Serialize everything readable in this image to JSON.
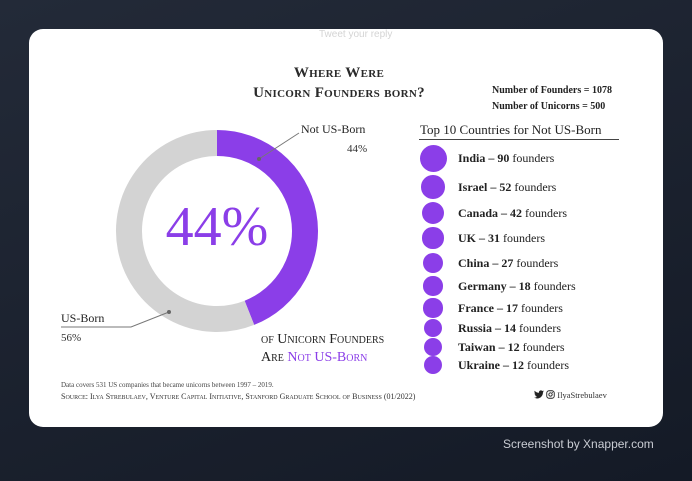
{
  "card_faded_text": "Tweet your reply",
  "title_line1": "Where Were",
  "title_line2": "Unicorn Founders born?",
  "stats": {
    "founders": "Number of Founders = 1078",
    "unicorns": "Number of Unicorns  = 500"
  },
  "big_percent": "44%",
  "caption_line1": "of Unicorn Founders",
  "caption_line2_prefix": "Are ",
  "caption_line2_highlight": "Not US-Born",
  "colors": {
    "accent": "#8b3ee8",
    "gray": "#d3d3d3"
  },
  "chart_data": [
    {
      "type": "pie",
      "categories": [
        "Not US-Born",
        "US-Born"
      ],
      "values": [
        44,
        56
      ],
      "labels": [
        "44%",
        "56%"
      ]
    },
    {
      "type": "bar",
      "title": "Top 10 Countries for Not US-Born",
      "categories": [
        "India",
        "Israel",
        "Canada",
        "UK",
        "China",
        "Germany",
        "France",
        "Russia",
        "Taiwan",
        "Ukraine"
      ],
      "values": [
        90,
        52,
        42,
        31,
        27,
        18,
        17,
        14,
        12,
        12
      ],
      "unit": "founders"
    }
  ],
  "footnote": "Data covers 531 US companies that became unicorns between 1997 – 2019.",
  "source": "Source: Ilya Strebulaev, Venture Capital Initiative, Stanford Graduate School of Business (01/2022)",
  "handle": "IlyaStrebulaev",
  "icons": [
    "twitter-icon",
    "instagram-icon"
  ],
  "watermark": "Screenshot by Xnapper.com"
}
